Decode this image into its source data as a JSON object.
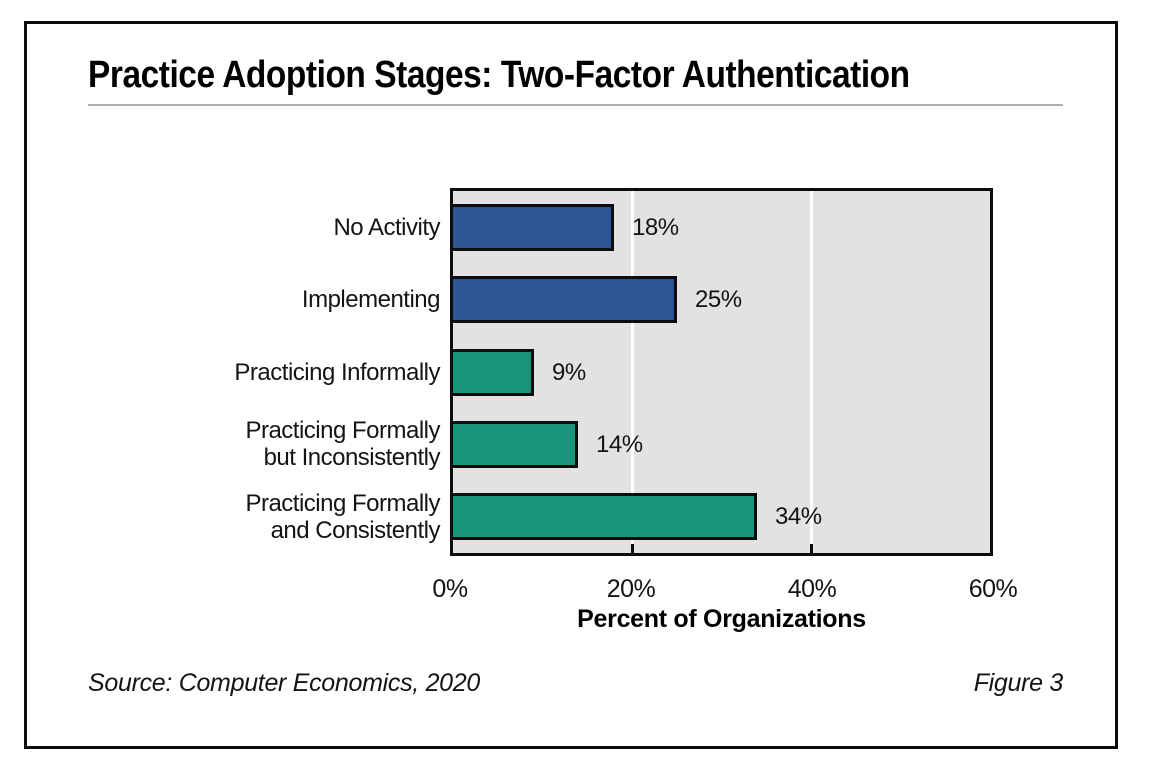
{
  "title": "Practice Adoption Stages: Two-Factor Authentication",
  "chart_data": {
    "type": "bar",
    "orientation": "horizontal",
    "title": "Practice Adoption Stages: Two-Factor Authentication",
    "categories": [
      "No Activity",
      "Implementing",
      "Practicing Informally",
      "Practicing Formally but Inconsistently",
      "Practicing Formally and Consistently"
    ],
    "category_label_lines": [
      [
        "No Activity"
      ],
      [
        "Implementing"
      ],
      [
        "Practicing Informally"
      ],
      [
        "Practicing Formally",
        "but Inconsistently"
      ],
      [
        "Practicing Formally",
        "and Consistently"
      ]
    ],
    "values": [
      18,
      25,
      9,
      14,
      34
    ],
    "value_labels": [
      "18%",
      "25%",
      "9%",
      "14%",
      "34%"
    ],
    "bar_colors": [
      "#2e5491",
      "#2e5491",
      "#17947a",
      "#17947a",
      "#17947a"
    ],
    "xlabel": "Percent of Organizations",
    "ylabel": "",
    "x_tick_labels": [
      "0%",
      "20%",
      "40%",
      "60%"
    ],
    "x_tick_values": [
      0,
      20,
      40,
      60
    ],
    "xlim": [
      0,
      60
    ],
    "gridlines_at": [
      20,
      40
    ],
    "grid_color": "#ffffff",
    "plot_background": "#e2e2e2",
    "legend": "none"
  },
  "footer": {
    "source": "Source: Computer Economics, 2020",
    "figure": "Figure 3"
  }
}
